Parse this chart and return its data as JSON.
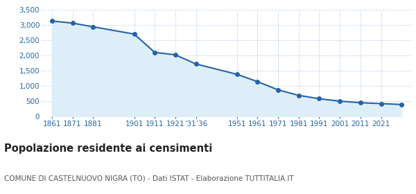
{
  "x_indices": [
    0,
    1,
    2,
    4,
    5,
    6,
    7,
    9,
    10,
    11,
    12,
    13,
    14,
    15,
    16,
    17
  ],
  "population": [
    3130,
    3060,
    2940,
    2700,
    2100,
    2020,
    1720,
    1380,
    1140,
    870,
    690,
    580,
    500,
    450,
    420,
    390
  ],
  "xtick_positions": [
    0,
    1,
    2,
    4,
    5,
    6,
    7,
    9,
    10,
    11,
    12,
    13,
    14,
    15,
    16,
    17
  ],
  "xtick_labels": [
    "1861",
    "1871",
    "1881",
    "1901",
    "1911",
    "1921",
    "’31’36",
    "1951",
    "1961",
    "1971",
    "1981",
    "1991",
    "2001",
    "2011",
    "2021",
    ""
  ],
  "line_color": "#2563a8",
  "fill_color": "#deeef8",
  "marker_color": "#2563a8",
  "bg_color": "#ffffff",
  "grid_color": "#b8cfe8",
  "ylim": [
    0,
    3500
  ],
  "yticks": [
    0,
    500,
    1000,
    1500,
    2000,
    2500,
    3000,
    3500
  ],
  "ytick_labels": [
    "0",
    "500",
    "1,000",
    "1,500",
    "2,000",
    "2,500",
    "3,000",
    "3,500"
  ],
  "xlim": [
    -0.5,
    17.5
  ],
  "title": "Popolazione residente ai censimenti",
  "subtitle": "COMUNE DI CASTELNUOVO NIGRA (TO) - Dati ISTAT - Elaborazione TUTTITALIA.IT",
  "title_fontsize": 10.5,
  "subtitle_fontsize": 7.5,
  "tick_color": "#2563a8",
  "tick_fontsize": 7.5
}
